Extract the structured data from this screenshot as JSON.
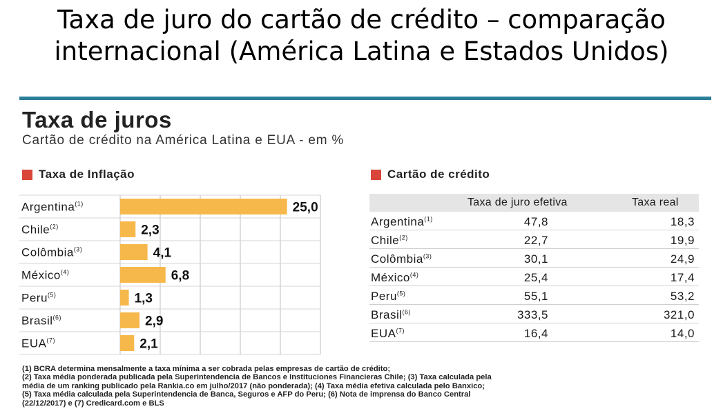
{
  "slide_title_line1": "Taxa de juro do cartão de crédito – comparação",
  "slide_title_line2": "internacional (América Latina e Estados Unidos)",
  "infographic": {
    "title": "Taxa de juros",
    "subtitle": "Cartão de crédito na América Latina e EUA - em %",
    "left_section": "Taxa de Inflação",
    "right_section": "Cartão de crédito",
    "table_headers": [
      "Taxa de juro efetiva",
      "Taxa real"
    ],
    "footnotes": [
      "(1) BCRA determina mensalmente a taxa mínima a ser cobrada pelas empresas de cartão de crédito;",
      "(2) Taxa média ponderada publicada pela Superintendencia de Bancos e Instituciones Financieras Chile; (3) Taxa calculada pela",
      "média de um ranking publicado pela Rankia.co em julho/2017 (não ponderada); (4) Taxa média efetiva calculada pelo Banxico;",
      "(5) Taxa média calculada pela Superintendencia de Banca, Seguros e AFP do Peru; (6) Nota de imprensa do Banco Central",
      "(22/12/2017) e (7) Credicard.com e BLS"
    ]
  },
  "colors": {
    "bar": "#f7b84b",
    "accent_square": "#d9453a",
    "top_rule": "#2b7f98",
    "table_header_bg": "#e5e5e5"
  },
  "chart_data": [
    {
      "type": "bar",
      "orientation": "horizontal",
      "title": "Taxa de Inflação",
      "categories": [
        "Argentina",
        "Chile",
        "Colômbia",
        "México",
        "Peru",
        "Brasil",
        "EUA"
      ],
      "category_notes": [
        "(1)",
        "(2)",
        "(3)",
        "(4)",
        "(5)",
        "(6)",
        "(7)"
      ],
      "values": [
        25.0,
        2.3,
        4.1,
        6.8,
        1.3,
        2.9,
        2.1
      ],
      "value_labels": [
        "25,0",
        "2,3",
        "4,1",
        "6,8",
        "1,3",
        "2,9",
        "2,1"
      ],
      "xlim": [
        0,
        30
      ],
      "grid": true
    },
    {
      "type": "table",
      "title": "Cartão de crédito",
      "columns": [
        "Taxa de juro efetiva",
        "Taxa real"
      ],
      "rows": [
        {
          "country": "Argentina",
          "note": "(1)",
          "values": [
            "47,8",
            "18,3"
          ]
        },
        {
          "country": "Chile",
          "note": "(2)",
          "values": [
            "22,7",
            "19,9"
          ]
        },
        {
          "country": "Colômbia",
          "note": "(3)",
          "values": [
            "30,1",
            "24,9"
          ]
        },
        {
          "country": "México",
          "note": "(4)",
          "values": [
            "25,4",
            "17,4"
          ]
        },
        {
          "country": "Peru",
          "note": "(5)",
          "values": [
            "55,1",
            "53,2"
          ]
        },
        {
          "country": "Brasil",
          "note": "(6)",
          "values": [
            "333,5",
            "321,0"
          ]
        },
        {
          "country": "EUA",
          "note": "(7)",
          "values": [
            "16,4",
            "14,0"
          ]
        }
      ]
    }
  ]
}
